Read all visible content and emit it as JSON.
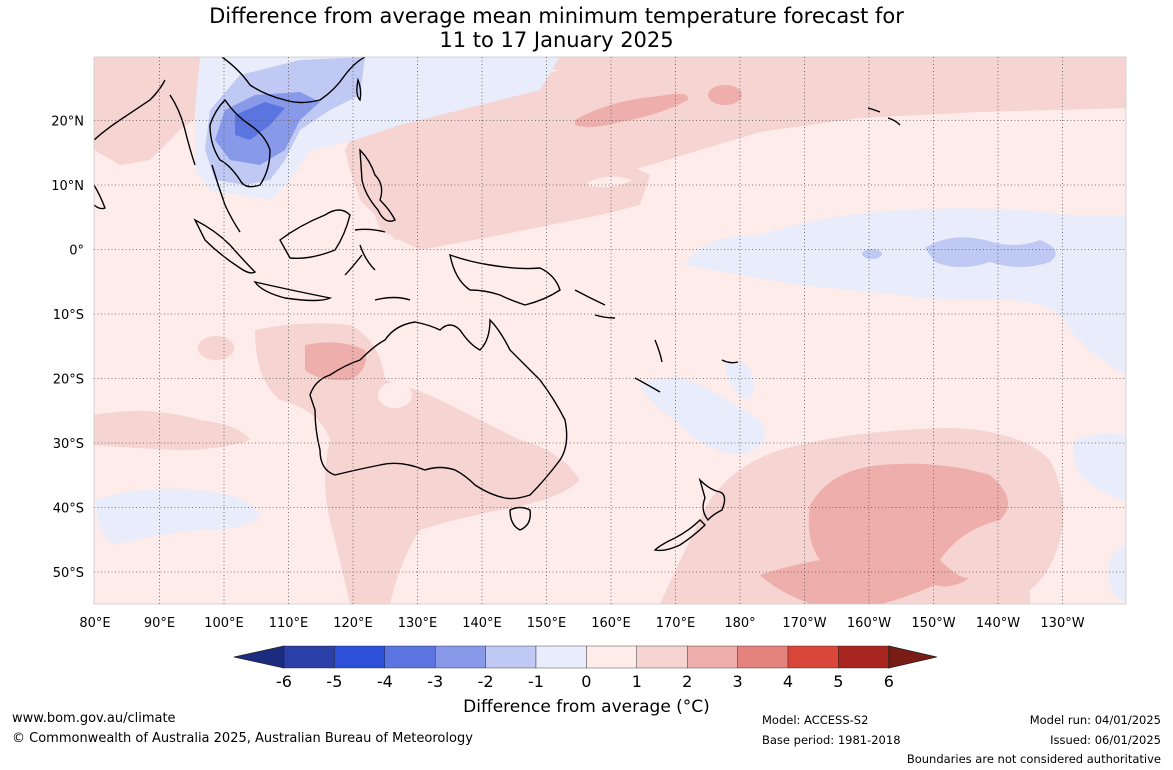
{
  "title": {
    "line1": "Difference from average mean minimum temperature forecast for",
    "line2": "11 to 17 January 2025"
  },
  "axes": {
    "lon_labels": [
      "80°E",
      "90°E",
      "100°E",
      "110°E",
      "120°E",
      "130°E",
      "140°E",
      "150°E",
      "160°E",
      "170°E",
      "180°",
      "170°W",
      "160°W",
      "150°W",
      "140°W",
      "130°W"
    ],
    "lat_labels": [
      "20°N",
      "10°N",
      "0°",
      "10°S",
      "20°S",
      "30°S",
      "40°S",
      "50°S"
    ]
  },
  "colorbar": {
    "ticks": [
      "-6",
      "-5",
      "-4",
      "-3",
      "-2",
      "-1",
      "0",
      "1",
      "2",
      "3",
      "4",
      "5",
      "6"
    ],
    "colors": [
      "#1c2d80",
      "#2a3fa8",
      "#2e4fd8",
      "#5a74e0",
      "#8799e8",
      "#c0c8f4",
      "#e8ecfb",
      "#fdecea",
      "#f6d4d2",
      "#eeaeac",
      "#e4827d",
      "#d9463a",
      "#a8261f",
      "#7a1c16"
    ],
    "label": "Difference from average (°C)"
  },
  "footer": {
    "website": "www.bom.gov.au/climate",
    "copyright": "© Commonwealth of Australia 2025, Australian Bureau of Meteorology",
    "model": "Model: ACCESS-S2",
    "base_period": "Base period: 1981-2018",
    "model_run": "Model run: 04/01/2025",
    "issued": "Issued: 06/01/2025",
    "disclaimer": "Boundaries are not considered authoritative"
  }
}
